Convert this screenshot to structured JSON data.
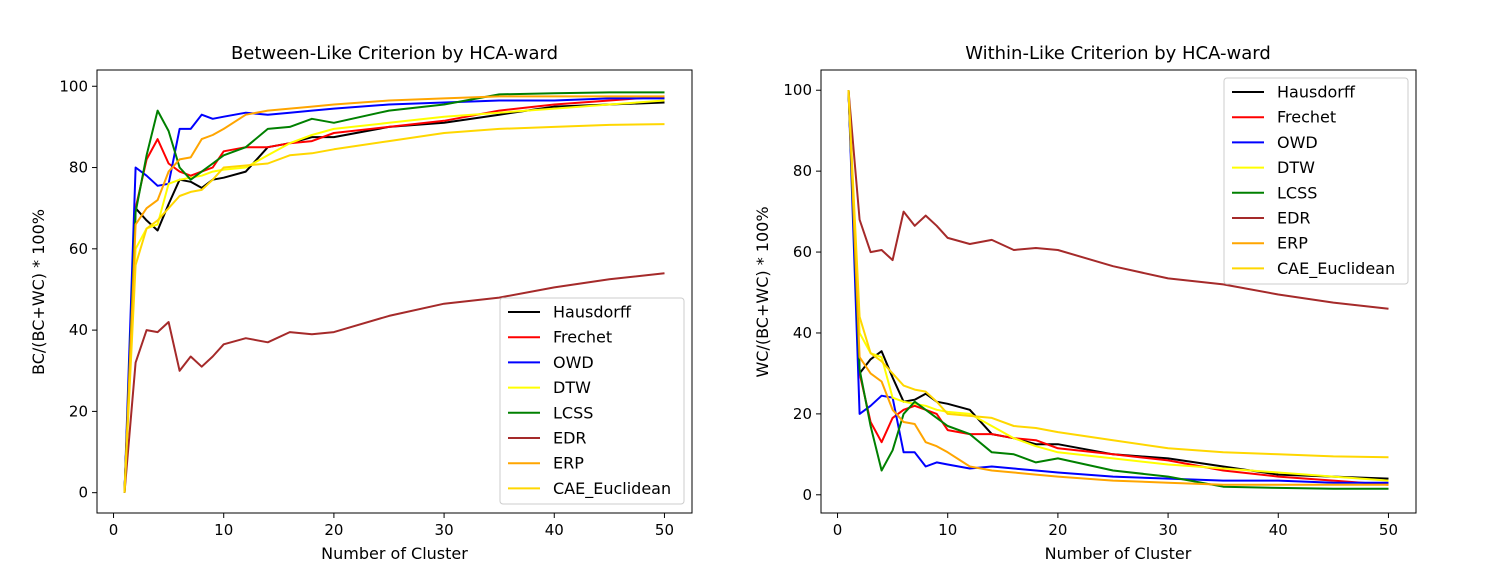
{
  "chart_data": [
    {
      "type": "line",
      "title": "Between-Like Criterion by HCA-ward",
      "xlabel": "Number of Cluster",
      "ylabel": "BC/(BC+WC) * 100%",
      "xlim": [
        -1.5,
        52.5
      ],
      "ylim": [
        -5,
        104
      ],
      "xticks": [
        0,
        10,
        20,
        30,
        40,
        50
      ],
      "yticks": [
        0,
        20,
        40,
        60,
        80,
        100
      ],
      "legend": "bottom-right",
      "x": [
        1,
        2,
        3,
        4,
        5,
        6,
        7,
        8,
        9,
        10,
        12,
        14,
        16,
        18,
        20,
        25,
        30,
        35,
        40,
        45,
        50
      ],
      "series": [
        {
          "name": "Hausdorff",
          "color": "#000000",
          "values": [
            0,
            70,
            67,
            64.5,
            71,
            77,
            76.5,
            75,
            77,
            77.5,
            79,
            85,
            86,
            87.5,
            87.5,
            90,
            91,
            93,
            95,
            95.5,
            96
          ]
        },
        {
          "name": "Frechet",
          "color": "#ff0000",
          "values": [
            0,
            70,
            82,
            87,
            81,
            79,
            78,
            79,
            80,
            84,
            85,
            85,
            86,
            86.5,
            88.5,
            90,
            91.5,
            94,
            95.5,
            96.5,
            97.5
          ]
        },
        {
          "name": "OWD",
          "color": "#0000ff",
          "values": [
            0,
            80,
            78,
            75.5,
            76,
            89.5,
            89.5,
            93,
            92,
            92.5,
            93.5,
            93,
            93.5,
            94,
            94.5,
            95.5,
            96,
            96.5,
            96.5,
            97,
            97
          ]
        },
        {
          "name": "DTW",
          "color": "#ffff00",
          "values": [
            0,
            60,
            65,
            66,
            76,
            77,
            77.5,
            78,
            79,
            79.5,
            80,
            83,
            86,
            88,
            89.5,
            91,
            92.5,
            93.5,
            94.5,
            95.5,
            96.5
          ]
        },
        {
          "name": "LCSS",
          "color": "#008000",
          "values": [
            0,
            69,
            83,
            94,
            89,
            80,
            77,
            79,
            81,
            83,
            85,
            89.5,
            90,
            92,
            91,
            94,
            95.5,
            98,
            98.3,
            98.5,
            98.5
          ]
        },
        {
          "name": "EDR",
          "color": "#a52a2a",
          "values": [
            0,
            32,
            40,
            39.5,
            42,
            30,
            33.5,
            31,
            33.5,
            36.5,
            38,
            37,
            39.5,
            39,
            39.5,
            43.5,
            46.5,
            48,
            50.5,
            52.5,
            54
          ]
        },
        {
          "name": "ERP",
          "color": "#ffa500",
          "values": [
            0,
            66,
            70,
            72,
            79,
            82,
            82.5,
            87,
            88,
            89.5,
            93,
            94,
            94.5,
            95,
            95.5,
            96.5,
            97,
            97.5,
            97.5,
            97.5,
            97.5
          ]
        },
        {
          "name": "CAE_Euclidean",
          "color": "#ffd700",
          "values": [
            0,
            56,
            65,
            67,
            70,
            73,
            74,
            74.5,
            77,
            80,
            80.5,
            81,
            83,
            83.5,
            84.5,
            86.5,
            88.5,
            89.5,
            90,
            90.5,
            90.7
          ]
        }
      ]
    },
    {
      "type": "line",
      "title": "Within-Like Criterion by HCA-ward",
      "xlabel": "Number of Cluster",
      "ylabel": "WC/(BC+WC) * 100%",
      "xlim": [
        -1.5,
        52.5
      ],
      "ylim": [
        -4.5,
        105
      ],
      "xticks": [
        0,
        10,
        20,
        30,
        40,
        50
      ],
      "yticks": [
        0,
        20,
        40,
        60,
        80,
        100
      ],
      "legend": "top-right",
      "x": [
        1,
        2,
        3,
        4,
        5,
        6,
        7,
        8,
        9,
        10,
        12,
        14,
        16,
        18,
        20,
        25,
        30,
        35,
        40,
        45,
        50
      ],
      "series": [
        {
          "name": "Hausdorff",
          "color": "#000000",
          "values": [
            100,
            30,
            33.5,
            35.5,
            29,
            23,
            23.5,
            25,
            23,
            22.5,
            21,
            15,
            14,
            12.5,
            12.5,
            10,
            9,
            7,
            5,
            4.5,
            4
          ]
        },
        {
          "name": "Frechet",
          "color": "#ff0000",
          "values": [
            100,
            30,
            18,
            13,
            19,
            21,
            22,
            21,
            20,
            16,
            15,
            15,
            14,
            13.5,
            11.5,
            10,
            8.5,
            6,
            4.5,
            3.5,
            2.5
          ]
        },
        {
          "name": "OWD",
          "color": "#0000ff",
          "values": [
            100,
            20,
            22,
            24.5,
            24,
            10.5,
            10.5,
            7,
            8,
            7.5,
            6.5,
            7,
            6.5,
            6,
            5.5,
            4.5,
            4,
            3.5,
            3.5,
            3,
            3
          ]
        },
        {
          "name": "DTW",
          "color": "#ffff00",
          "values": [
            100,
            40,
            35,
            34,
            24,
            23,
            22.5,
            22,
            21,
            20.5,
            20,
            17,
            14,
            12,
            10.5,
            9,
            7.5,
            6.5,
            5.5,
            4.5,
            3.5
          ]
        },
        {
          "name": "LCSS",
          "color": "#008000",
          "values": [
            100,
            31,
            17,
            6,
            11,
            20,
            23,
            21,
            19,
            17,
            15,
            10.5,
            10,
            8,
            9,
            6,
            4.5,
            2,
            1.7,
            1.5,
            1.5
          ]
        },
        {
          "name": "EDR",
          "color": "#a52a2a",
          "values": [
            100,
            68,
            60,
            60.5,
            58,
            70,
            66.5,
            69,
            66.5,
            63.5,
            62,
            63,
            60.5,
            61,
            60.5,
            56.5,
            53.5,
            52,
            49.5,
            47.5,
            46
          ]
        },
        {
          "name": "ERP",
          "color": "#ffa500",
          "values": [
            100,
            34,
            30,
            28,
            21,
            18,
            17.5,
            13,
            12,
            10.5,
            7,
            6,
            5.5,
            5,
            4.5,
            3.5,
            3,
            2.5,
            2.5,
            2.5,
            2.5
          ]
        },
        {
          "name": "CAE_Euclidean",
          "color": "#ffd700",
          "values": [
            100,
            44,
            35,
            33,
            30,
            27,
            26,
            25.5,
            23,
            20,
            19.5,
            19,
            17,
            16.5,
            15.5,
            13.5,
            11.5,
            10.5,
            10,
            9.5,
            9.3
          ]
        }
      ]
    }
  ]
}
